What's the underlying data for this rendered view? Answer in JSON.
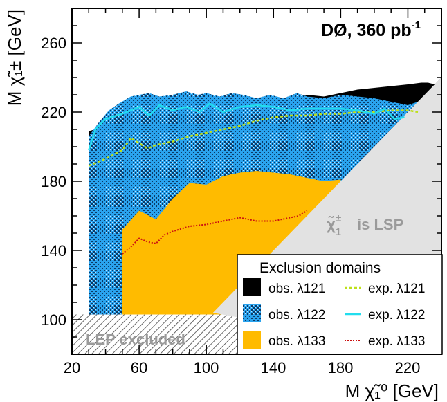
{
  "chart_data": {
    "type": "area",
    "experiment_label": "DØ, 360 pb",
    "experiment_label_sup": "-1",
    "xlabel": "M χ̃₁⁰ [GeV]",
    "ylabel": "M χ̃₁± [GeV]",
    "xlim": [
      20,
      240
    ],
    "ylim": [
      80,
      280
    ],
    "x_ticks": [
      20,
      60,
      100,
      140,
      180,
      220
    ],
    "y_ticks": [
      100,
      140,
      180,
      220,
      260
    ],
    "x_tick_labels": [
      "20",
      "60",
      "100",
      "140",
      "180",
      "220"
    ],
    "y_tick_labels": [
      "100",
      "140",
      "180",
      "220",
      "260"
    ],
    "grid": false,
    "legend_position": "bottom-right",
    "legend_title": "Exclusion domains",
    "lsp_label": "is LSP",
    "lep_label": "LEP excluded",
    "lep_excluded_below": 103,
    "lsp_region": {
      "x": [
        104,
        240,
        240
      ],
      "y": [
        104,
        240,
        80
      ]
    },
    "series": [
      {
        "name": "obs. λ121",
        "kind": "observed",
        "color": "#000000",
        "x": [
          30,
          30,
          38,
          50,
          60,
          70,
          80,
          90,
          100,
          110,
          120,
          130,
          140,
          150,
          160,
          170,
          180,
          190,
          200,
          210,
          220,
          228,
          232,
          236
        ],
        "y": [
          100,
          209,
          211,
          214,
          216,
          219,
          221,
          223,
          225,
          226,
          226,
          227,
          227,
          228,
          230,
          229,
          231,
          233,
          234,
          235,
          236,
          237,
          237,
          236
        ]
      },
      {
        "name": "obs. λ122",
        "kind": "observed",
        "color": "#2aa3ee",
        "x": [
          30,
          30,
          36,
          42,
          48,
          55,
          60,
          66,
          72,
          80,
          88,
          95,
          100,
          108,
          115,
          122,
          130,
          138,
          146,
          154,
          160,
          170,
          180,
          190,
          200,
          210,
          220,
          226
        ],
        "y": [
          100,
          206,
          214,
          221,
          225,
          229,
          230,
          231,
          229,
          230,
          232,
          230,
          231,
          229,
          231,
          230,
          228,
          230,
          228,
          231,
          229,
          228,
          230,
          229,
          228,
          226,
          224,
          226
        ]
      },
      {
        "name": "obs. λ133",
        "kind": "observed",
        "color": "#ffbb00",
        "x": [
          50,
          50,
          60,
          70,
          80,
          90,
          100,
          110,
          120,
          130,
          140,
          150,
          160,
          170,
          180,
          180
        ],
        "y": [
          100,
          152,
          163,
          158,
          170,
          179,
          178,
          183,
          185,
          186,
          185,
          184,
          182,
          180,
          181,
          100
        ]
      },
      {
        "name": "exp. λ121",
        "kind": "expected",
        "color": "#bde01a",
        "x": [
          30,
          40,
          50,
          55,
          60,
          65,
          70,
          80,
          90,
          100,
          110,
          120,
          130,
          140,
          150,
          160,
          170,
          180,
          190,
          200,
          210,
          220,
          226
        ],
        "y": [
          189,
          193,
          198,
          205,
          202,
          199,
          201,
          203,
          206,
          208,
          210,
          212,
          215,
          217,
          218,
          218,
          219,
          219,
          220,
          220,
          221,
          221,
          220
        ]
      },
      {
        "name": "exp. λ122",
        "kind": "expected",
        "color": "#22ddee",
        "x": [
          30,
          34,
          40,
          50,
          60,
          66,
          72,
          80,
          88,
          96,
          102,
          110,
          120,
          130,
          140,
          150,
          160,
          170,
          180,
          190,
          200,
          206,
          212,
          218
        ],
        "y": [
          198,
          210,
          216,
          219,
          223,
          218,
          224,
          221,
          223,
          220,
          225,
          220,
          223,
          224,
          223,
          221,
          222,
          222,
          222,
          221,
          219,
          222,
          216,
          217
        ]
      },
      {
        "name": "exp. λ133",
        "kind": "expected",
        "color": "#cc1111",
        "x": [
          50,
          55,
          60,
          65,
          70,
          75,
          80,
          90,
          100,
          110,
          120,
          130,
          140,
          150,
          155,
          160
        ],
        "y": [
          138,
          142,
          147,
          145,
          144,
          149,
          151,
          154,
          155,
          157,
          159,
          157,
          157,
          159,
          160,
          163
        ]
      }
    ]
  }
}
